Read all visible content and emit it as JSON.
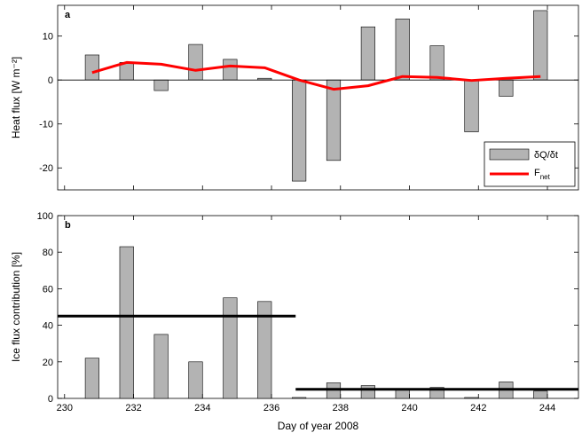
{
  "chart_data": [
    {
      "type": "bar",
      "panel_label": "a",
      "xlabel": "",
      "ylabel": "Heat flux [W m⁻²]",
      "xlim": [
        229.8,
        244.9
      ],
      "ylim": [
        -25,
        17
      ],
      "yticks": [
        -20,
        -10,
        0,
        10
      ],
      "xticks": [
        230,
        232,
        234,
        236,
        238,
        240,
        242,
        244
      ],
      "grid": false,
      "legend_position": "bottom-right",
      "bar_width": 0.4,
      "series": [
        {
          "name": "δQ/δt",
          "kind": "bar",
          "color": "#b3b3b3",
          "x": [
            230.8,
            231.8,
            232.8,
            233.8,
            234.8,
            235.8,
            236.8,
            237.8,
            238.8,
            239.8,
            240.8,
            241.8,
            242.8,
            243.8
          ],
          "values": [
            5.7,
            4.0,
            -2.4,
            8.1,
            4.7,
            0.4,
            -23.0,
            -18.3,
            12.1,
            13.9,
            7.8,
            -11.8,
            -3.7,
            15.8
          ]
        },
        {
          "name": "F",
          "name_subscript": "net",
          "kind": "line",
          "color": "#ff0000",
          "x": [
            230.8,
            231.8,
            232.8,
            233.8,
            234.8,
            235.8,
            236.8,
            237.8,
            238.8,
            239.8,
            240.8,
            241.8,
            242.8,
            243.8
          ],
          "values": [
            1.7,
            4.0,
            3.6,
            2.2,
            3.2,
            2.8,
            0.0,
            -2.1,
            -1.3,
            0.8,
            0.6,
            -0.1,
            0.4,
            0.8
          ]
        }
      ],
      "hline": 0
    },
    {
      "type": "bar",
      "panel_label": "b",
      "xlabel": "Day of year 2008",
      "ylabel": "Ice flux contribution [%]",
      "xlim": [
        229.8,
        244.9
      ],
      "ylim": [
        0,
        100
      ],
      "yticks": [
        0,
        20,
        40,
        60,
        80,
        100
      ],
      "xticks": [
        230,
        232,
        234,
        236,
        238,
        240,
        242,
        244
      ],
      "grid": false,
      "bar_width": 0.4,
      "series": [
        {
          "kind": "bar",
          "color": "#b3b3b3",
          "x": [
            230.8,
            231.8,
            232.8,
            233.8,
            234.8,
            235.8,
            236.8,
            237.8,
            238.8,
            239.8,
            240.8,
            241.8,
            242.8,
            243.8
          ],
          "values": [
            22,
            83,
            35,
            20,
            55,
            53,
            0.5,
            8.5,
            7,
            5,
            6,
            0.5,
            9,
            4
          ]
        }
      ],
      "mean_lines": [
        {
          "x_start": 229.8,
          "x_end": 236.7,
          "value": 45
        },
        {
          "x_start": 236.7,
          "x_end": 244.9,
          "value": 5
        }
      ]
    }
  ]
}
